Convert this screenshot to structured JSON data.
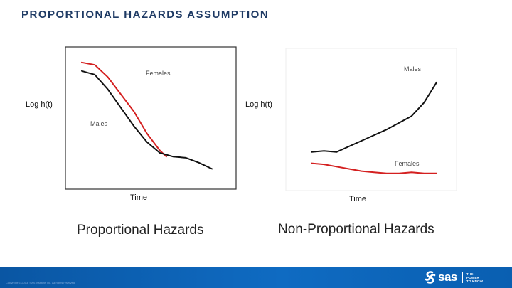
{
  "slide": {
    "title": "PROPORTIONAL HAZARDS ASSUMPTION"
  },
  "chart_data": [
    {
      "type": "line",
      "title": "Proportional Hazards",
      "xlabel": "Time",
      "ylabel": "Log h(t)",
      "grid": false,
      "series": [
        {
          "name": "Females",
          "color": "#d42020",
          "x": [
            0.0,
            0.1,
            0.2,
            0.3,
            0.4,
            0.5,
            0.6,
            0.65
          ],
          "y": [
            0.92,
            0.9,
            0.8,
            0.66,
            0.52,
            0.34,
            0.2,
            0.15
          ]
        },
        {
          "name": "Males",
          "color": "#111111",
          "x": [
            0.0,
            0.1,
            0.2,
            0.3,
            0.4,
            0.5,
            0.6,
            0.7,
            0.8,
            0.9,
            1.0
          ],
          "y": [
            0.85,
            0.82,
            0.7,
            0.55,
            0.4,
            0.27,
            0.18,
            0.15,
            0.14,
            0.1,
            0.05
          ]
        }
      ]
    },
    {
      "type": "line",
      "title": "Non-Proportional Hazards",
      "xlabel": "Time",
      "ylabel": "Log h(t)",
      "grid": false,
      "series": [
        {
          "name": "Males",
          "color": "#111111",
          "x": [
            0.0,
            0.1,
            0.2,
            0.3,
            0.4,
            0.5,
            0.6,
            0.7,
            0.8,
            0.9,
            1.0
          ],
          "y": [
            0.28,
            0.29,
            0.28,
            0.33,
            0.38,
            0.43,
            0.48,
            0.54,
            0.6,
            0.72,
            0.9
          ]
        },
        {
          "name": "Females",
          "color": "#d42020",
          "x": [
            0.0,
            0.1,
            0.2,
            0.3,
            0.4,
            0.5,
            0.6,
            0.7,
            0.8,
            0.9,
            1.0
          ],
          "y": [
            0.18,
            0.17,
            0.15,
            0.13,
            0.11,
            0.1,
            0.09,
            0.09,
            0.1,
            0.09,
            0.09
          ]
        }
      ]
    }
  ],
  "footer": {
    "copyright": "Copyright © 2013, SAS Institute Inc. All rights reserved.",
    "logo_text": "sas",
    "tagline": [
      "THE",
      "POWER",
      "TO KNOW."
    ],
    "bar_color": "#0f6bc2"
  }
}
